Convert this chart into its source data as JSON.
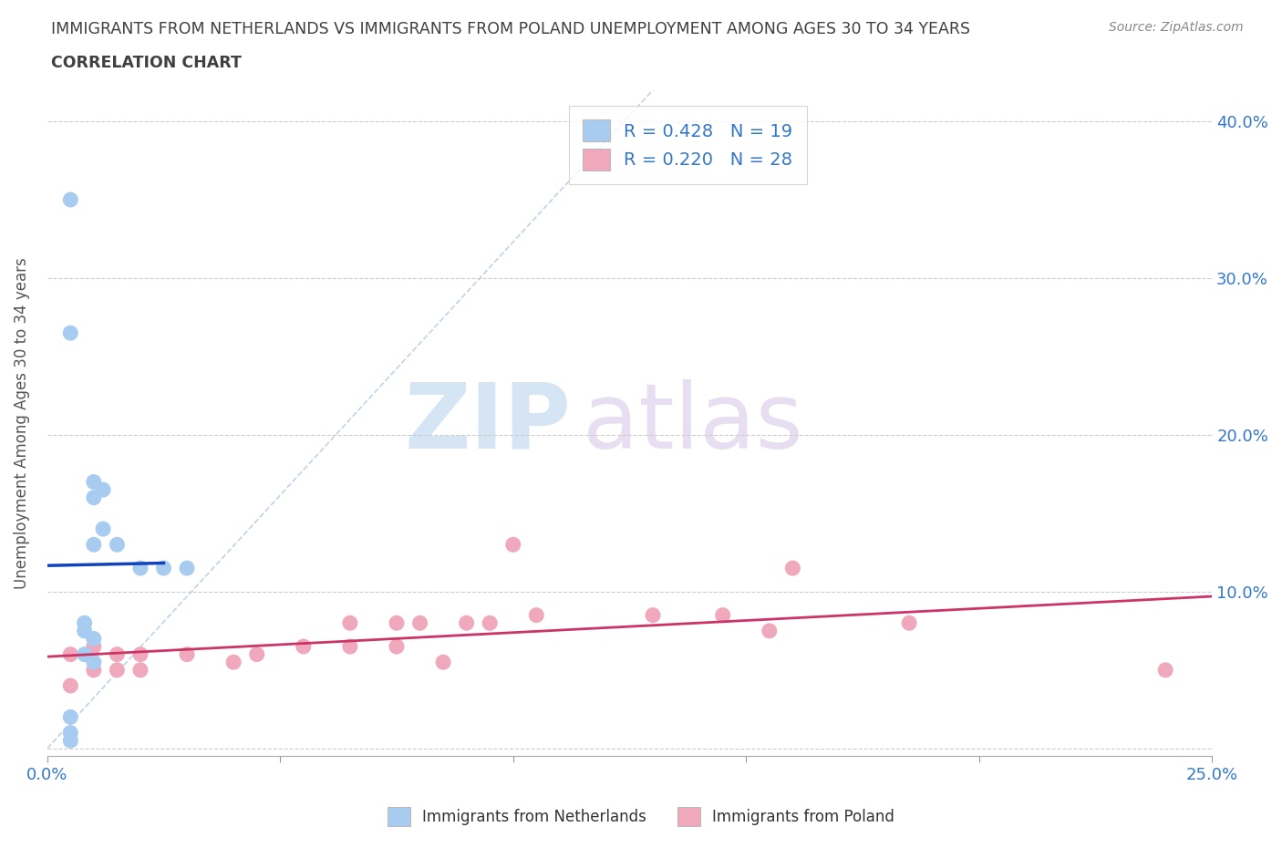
{
  "title_line1": "IMMIGRANTS FROM NETHERLANDS VS IMMIGRANTS FROM POLAND UNEMPLOYMENT AMONG AGES 30 TO 34 YEARS",
  "title_line2": "CORRELATION CHART",
  "source": "Source: ZipAtlas.com",
  "ylabel": "Unemployment Among Ages 30 to 34 years",
  "xlim": [
    0.0,
    0.25
  ],
  "ylim": [
    -0.005,
    0.42
  ],
  "xticks": [
    0.0,
    0.05,
    0.1,
    0.15,
    0.2,
    0.25
  ],
  "yticks": [
    0.0,
    0.1,
    0.2,
    0.3,
    0.4
  ],
  "grid_color": "#cccccc",
  "background_color": "#ffffff",
  "netherlands_color": "#a8ccf0",
  "netherlands_line_color": "#1144bb",
  "poland_color": "#f0a8bc",
  "poland_line_color": "#cc3366",
  "diagonal_color": "#b0c8e0",
  "r_netherlands": 0.428,
  "n_netherlands": 19,
  "r_poland": 0.22,
  "n_poland": 28,
  "netherlands_x": [
    0.005,
    0.005,
    0.005,
    0.008,
    0.008,
    0.008,
    0.01,
    0.01,
    0.01,
    0.01,
    0.01,
    0.012,
    0.012,
    0.015,
    0.02,
    0.025,
    0.03,
    0.005,
    0.005
  ],
  "netherlands_y": [
    0.005,
    0.01,
    0.02,
    0.06,
    0.075,
    0.08,
    0.055,
    0.07,
    0.13,
    0.16,
    0.17,
    0.14,
    0.165,
    0.13,
    0.115,
    0.115,
    0.115,
    0.35,
    0.265
  ],
  "poland_x": [
    0.005,
    0.005,
    0.01,
    0.01,
    0.015,
    0.015,
    0.02,
    0.02,
    0.03,
    0.04,
    0.045,
    0.055,
    0.065,
    0.065,
    0.075,
    0.075,
    0.08,
    0.085,
    0.09,
    0.095,
    0.1,
    0.105,
    0.13,
    0.145,
    0.155,
    0.16,
    0.185,
    0.24
  ],
  "poland_y": [
    0.04,
    0.06,
    0.05,
    0.065,
    0.05,
    0.06,
    0.05,
    0.06,
    0.06,
    0.055,
    0.06,
    0.065,
    0.065,
    0.08,
    0.065,
    0.08,
    0.08,
    0.055,
    0.08,
    0.08,
    0.13,
    0.085,
    0.085,
    0.085,
    0.075,
    0.115,
    0.08,
    0.05
  ],
  "watermark_zip": "ZIP",
  "watermark_atlas": "atlas",
  "title_color": "#404040",
  "axis_label_color": "#555555",
  "tick_label_color": "#3377cc",
  "legend_text_color": "#3377cc"
}
